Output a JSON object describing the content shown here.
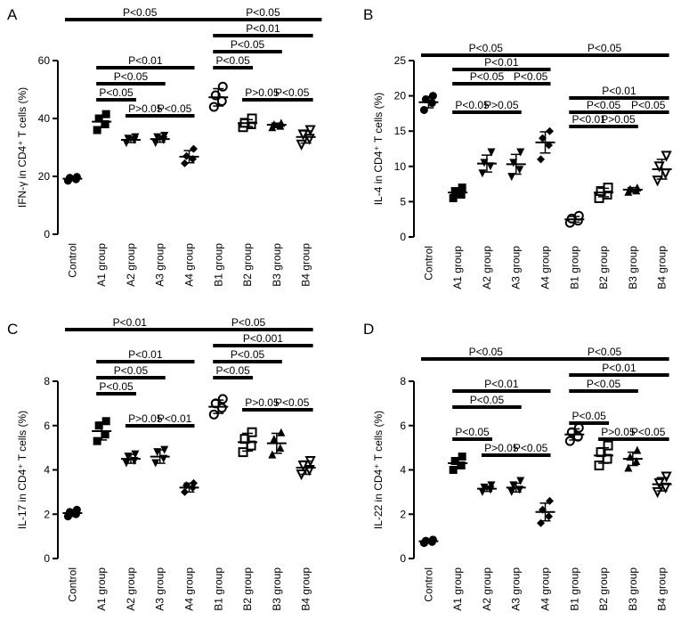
{
  "chart_data": [
    {
      "type": "scatter",
      "panel_label": "A",
      "ylabel": "IFN-γ in CD4⁺ T cells (%)",
      "ylim": [
        0,
        60
      ],
      "yticks": [
        0,
        20,
        40,
        60
      ],
      "categories": [
        "Control",
        "A1 group",
        "A2 group",
        "A3 group",
        "A4 group",
        "B1 group",
        "B2 group",
        "B3 group",
        "B4 group"
      ],
      "series": [
        {
          "values": [
            18.5,
            19.0,
            19.5,
            19.8
          ]
        },
        {
          "values": [
            36.0,
            38.0,
            40.0,
            41.5
          ]
        },
        {
          "values": [
            31.5,
            32.5,
            33.0,
            33.5
          ]
        },
        {
          "values": [
            31.5,
            32.5,
            33.5,
            34.0
          ]
        },
        {
          "values": [
            24.5,
            26.0,
            27.0,
            29.5
          ]
        },
        {
          "values": [
            44.0,
            46.0,
            48.0,
            51.0
          ]
        },
        {
          "values": [
            37.0,
            38.0,
            38.5,
            40.0
          ]
        },
        {
          "values": [
            37.0,
            37.5,
            38.0,
            38.5
          ]
        },
        {
          "values": [
            31.0,
            33.0,
            34.5,
            36.0
          ]
        }
      ],
      "means": [
        19.2,
        38.9,
        32.6,
        32.9,
        26.8,
        47.3,
        38.4,
        37.8,
        33.6
      ],
      "sds": [
        0.6,
        2.0,
        0.9,
        1.1,
        2.1,
        3.0,
        1.2,
        0.6,
        2.1
      ],
      "comparisons": [
        {
          "from": 0,
          "to": 4.7,
          "level": 0,
          "label": "P<0.05"
        },
        {
          "from": 4.7,
          "to": 8.3,
          "level": 0,
          "label": "P<0.05"
        },
        {
          "from": 5,
          "to": 8,
          "level": 1,
          "label": "P<0.01"
        },
        {
          "from": 5,
          "to": 7,
          "level": 2,
          "label": "P<0.05"
        },
        {
          "from": 1,
          "to": 4,
          "level": 3,
          "label": "P<0.01"
        },
        {
          "from": 5,
          "to": 6,
          "level": 3,
          "label": "P<0.05"
        },
        {
          "from": 1,
          "to": 3,
          "level": 4,
          "label": "P<0.05"
        },
        {
          "from": 1,
          "to": 2,
          "level": 5,
          "label": "P<0.05"
        },
        {
          "from": 6,
          "to": 7,
          "level": 5,
          "label": "P>0.05"
        },
        {
          "from": 7,
          "to": 8,
          "level": 5,
          "label": "P<0.05"
        },
        {
          "from": 2,
          "to": 3,
          "level": 6,
          "label": "P>0.05"
        },
        {
          "from": 3,
          "to": 4,
          "level": 6,
          "label": "P<0.05"
        }
      ]
    },
    {
      "type": "scatter",
      "panel_label": "B",
      "ylabel": "IL-4 in CD4⁺ T cells (%)",
      "ylim": [
        0,
        25
      ],
      "yticks": [
        0,
        5,
        10,
        15,
        20,
        25
      ],
      "categories": [
        "Control",
        "A1 group",
        "A2 group",
        "A3 group",
        "A4 group",
        "B1 group",
        "B2 group",
        "B3 group",
        "B4 group"
      ],
      "series": [
        {
          "values": [
            18.0,
            19.0,
            19.5,
            20.0
          ]
        },
        {
          "values": [
            5.5,
            6.0,
            6.5,
            7.0
          ]
        },
        {
          "values": [
            9.0,
            10.0,
            10.5,
            12.0
          ]
        },
        {
          "values": [
            8.5,
            9.5,
            10.5,
            12.0
          ]
        },
        {
          "values": [
            11.0,
            13.0,
            14.0,
            15.0
          ]
        },
        {
          "values": [
            2.0,
            2.3,
            2.6,
            3.0
          ]
        },
        {
          "values": [
            5.5,
            6.0,
            6.5,
            7.0
          ]
        },
        {
          "values": [
            6.4,
            6.6,
            6.8,
            7.0
          ]
        },
        {
          "values": [
            8.0,
            9.0,
            10.0,
            11.5
          ]
        }
      ],
      "means": [
        19.1,
        6.3,
        10.4,
        10.3,
        13.4,
        2.5,
        6.3,
        6.7,
        9.6
      ],
      "sds": [
        0.8,
        0.6,
        1.2,
        1.4,
        1.5,
        0.4,
        0.6,
        0.3,
        1.4
      ],
      "comparisons": [
        {
          "from": 0,
          "to": 4,
          "level": 0,
          "label": "P<0.05"
        },
        {
          "from": 4,
          "to": 8,
          "level": 0,
          "label": "P<0.05"
        },
        {
          "from": 1,
          "to": 4,
          "level": 1,
          "label": "P<0.01"
        },
        {
          "from": 1,
          "to": 3,
          "level": 2,
          "label": "P<0.05"
        },
        {
          "from": 3,
          "to": 4,
          "level": 2,
          "label": "P<0.05"
        },
        {
          "from": 5,
          "to": 8,
          "level": 3,
          "label": "P<0.01"
        },
        {
          "from": 1,
          "to": 2,
          "level": 4,
          "label": "P<0.05"
        },
        {
          "from": 2,
          "to": 3,
          "level": 4,
          "label": "P>0.05"
        },
        {
          "from": 5,
          "to": 7,
          "level": 4,
          "label": "P<0.05"
        },
        {
          "from": 7,
          "to": 8,
          "level": 4,
          "label": "P<0.05"
        },
        {
          "from": 5,
          "to": 6,
          "level": 5,
          "label": "P<0.01"
        },
        {
          "from": 6,
          "to": 7,
          "level": 5,
          "label": "P>0.05"
        }
      ]
    },
    {
      "type": "scatter",
      "panel_label": "C",
      "ylabel": "IL-17 in CD4⁺ T cells (%)",
      "ylim": [
        0,
        8
      ],
      "yticks": [
        0,
        2,
        4,
        6,
        8
      ],
      "categories": [
        "Control",
        "A1 group",
        "A2 group",
        "A3 group",
        "A4 group",
        "B1 group",
        "B2 group",
        "B3 group",
        "B4 group"
      ],
      "series": [
        {
          "values": [
            1.9,
            2.0,
            2.1,
            2.2
          ]
        },
        {
          "values": [
            5.3,
            5.6,
            6.0,
            6.2
          ]
        },
        {
          "values": [
            4.3,
            4.4,
            4.6,
            4.7
          ]
        },
        {
          "values": [
            4.3,
            4.5,
            4.8,
            4.9
          ]
        },
        {
          "values": [
            3.0,
            3.2,
            3.3,
            3.4
          ]
        },
        {
          "values": [
            6.5,
            6.8,
            7.0,
            7.2
          ]
        },
        {
          "values": [
            4.8,
            5.1,
            5.4,
            5.7
          ]
        },
        {
          "values": [
            4.7,
            5.0,
            5.4,
            5.7
          ]
        },
        {
          "values": [
            3.8,
            4.0,
            4.2,
            4.4
          ]
        }
      ],
      "means": [
        2.05,
        5.75,
        4.5,
        4.6,
        3.2,
        6.85,
        5.25,
        5.2,
        4.1
      ],
      "sds": [
        0.15,
        0.4,
        0.2,
        0.3,
        0.2,
        0.3,
        0.4,
        0.45,
        0.3
      ],
      "comparisons": [
        {
          "from": 0,
          "to": 4,
          "level": 0,
          "label": "P<0.01"
        },
        {
          "from": 4,
          "to": 8,
          "level": 0,
          "label": "P<0.05"
        },
        {
          "from": 5,
          "to": 8,
          "level": 1,
          "label": "P<0.001"
        },
        {
          "from": 1,
          "to": 4,
          "level": 2,
          "label": "P<0.01"
        },
        {
          "from": 5,
          "to": 7,
          "level": 2,
          "label": "P<0.05"
        },
        {
          "from": 1,
          "to": 3,
          "level": 3,
          "label": "P<0.05"
        },
        {
          "from": 5,
          "to": 6,
          "level": 3,
          "label": "P<0.05"
        },
        {
          "from": 1,
          "to": 2,
          "level": 4,
          "label": "P<0.05"
        },
        {
          "from": 6,
          "to": 7,
          "level": 5,
          "label": "P>0.05"
        },
        {
          "from": 7,
          "to": 8,
          "level": 5,
          "label": "P<0.05"
        },
        {
          "from": 2,
          "to": 3,
          "level": 6,
          "label": "P>0.05"
        },
        {
          "from": 3,
          "to": 4,
          "level": 6,
          "label": "P<0.01"
        }
      ]
    },
    {
      "type": "scatter",
      "panel_label": "D",
      "ylabel": "IL-22 in CD4⁺ T cells (%)",
      "ylim": [
        0,
        8
      ],
      "yticks": [
        0,
        2,
        4,
        6,
        8
      ],
      "categories": [
        "Control",
        "A1 group",
        "A2 group",
        "A3 group",
        "A4 group",
        "B1 group",
        "B2 group",
        "B3 group",
        "B4 group"
      ],
      "series": [
        {
          "values": [
            0.7,
            0.75,
            0.8,
            0.85
          ]
        },
        {
          "values": [
            4.0,
            4.2,
            4.4,
            4.6
          ]
        },
        {
          "values": [
            3.0,
            3.1,
            3.2,
            3.3
          ]
        },
        {
          "values": [
            3.0,
            3.1,
            3.3,
            3.5
          ]
        },
        {
          "values": [
            1.6,
            1.9,
            2.2,
            2.6
          ]
        },
        {
          "values": [
            5.3,
            5.5,
            5.7,
            5.9
          ]
        },
        {
          "values": [
            4.2,
            4.5,
            4.8,
            5.1
          ]
        },
        {
          "values": [
            4.1,
            4.4,
            4.6,
            4.9
          ]
        },
        {
          "values": [
            3.0,
            3.2,
            3.4,
            3.7
          ]
        }
      ],
      "means": [
        0.78,
        4.3,
        3.15,
        3.2,
        2.1,
        5.6,
        4.65,
        4.5,
        3.35
      ],
      "sds": [
        0.06,
        0.25,
        0.12,
        0.2,
        0.4,
        0.25,
        0.35,
        0.3,
        0.3
      ],
      "comparisons": [
        {
          "from": 0,
          "to": 4,
          "level": 0,
          "label": "P<0.05"
        },
        {
          "from": 4,
          "to": 8,
          "level": 0,
          "label": "P<0.05"
        },
        {
          "from": 5,
          "to": 8,
          "level": 1,
          "label": "P<0.01"
        },
        {
          "from": 1,
          "to": 4,
          "level": 2,
          "label": "P<0.01"
        },
        {
          "from": 5,
          "to": 7,
          "level": 2,
          "label": "P<0.05"
        },
        {
          "from": 1,
          "to": 3,
          "level": 3,
          "label": "P<0.05"
        },
        {
          "from": 5,
          "to": 6,
          "level": 4,
          "label": "P<0.05"
        },
        {
          "from": 1,
          "to": 2,
          "level": 5,
          "label": "P<0.05"
        },
        {
          "from": 6,
          "to": 7,
          "level": 5,
          "label": "P>0.05"
        },
        {
          "from": 7,
          "to": 8,
          "level": 5,
          "label": "P<0.05"
        },
        {
          "from": 2,
          "to": 3,
          "level": 6,
          "label": "P>0.05"
        },
        {
          "from": 3,
          "to": 4,
          "level": 6,
          "label": "P<0.05"
        }
      ]
    }
  ]
}
